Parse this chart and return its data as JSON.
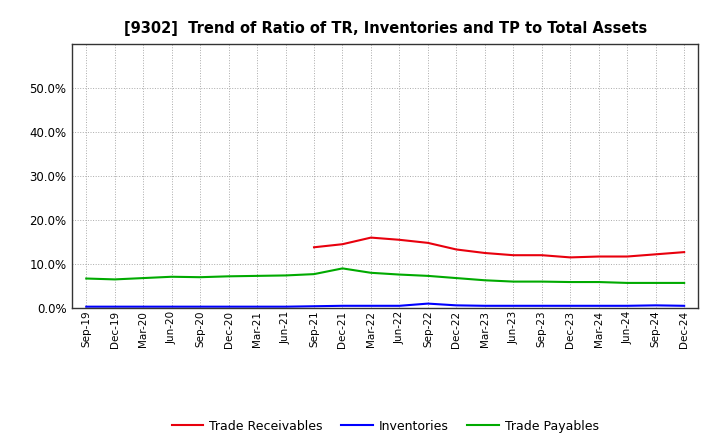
{
  "title": "[9302]  Trend of Ratio of TR, Inventories and TP to Total Assets",
  "x_labels": [
    "Sep-19",
    "Dec-19",
    "Mar-20",
    "Jun-20",
    "Sep-20",
    "Dec-20",
    "Mar-21",
    "Jun-21",
    "Sep-21",
    "Dec-21",
    "Mar-22",
    "Jun-22",
    "Sep-22",
    "Dec-22",
    "Mar-23",
    "Jun-23",
    "Sep-23",
    "Dec-23",
    "Mar-24",
    "Jun-24",
    "Sep-24",
    "Dec-24"
  ],
  "trade_receivables": [
    null,
    null,
    null,
    null,
    null,
    null,
    null,
    null,
    0.138,
    0.145,
    0.16,
    0.155,
    0.148,
    0.133,
    0.125,
    0.12,
    0.12,
    0.115,
    0.117,
    0.117,
    0.122,
    0.127
  ],
  "inventories": [
    0.003,
    0.003,
    0.003,
    0.003,
    0.003,
    0.003,
    0.003,
    0.003,
    0.004,
    0.005,
    0.005,
    0.005,
    0.01,
    0.006,
    0.005,
    0.005,
    0.005,
    0.005,
    0.005,
    0.005,
    0.006,
    0.005
  ],
  "trade_payables": [
    0.067,
    0.065,
    0.068,
    0.071,
    0.07,
    0.072,
    0.073,
    0.074,
    0.077,
    0.09,
    0.08,
    0.076,
    0.073,
    0.068,
    0.063,
    0.06,
    0.06,
    0.059,
    0.059,
    0.057,
    0.057,
    0.057
  ],
  "tr_color": "#e8000d",
  "inv_color": "#0000ff",
  "tp_color": "#00aa00",
  "ylim": [
    0,
    0.6
  ],
  "yticks": [
    0.0,
    0.1,
    0.2,
    0.3,
    0.4,
    0.5
  ],
  "background_color": "#ffffff",
  "grid_color": "#aaaaaa",
  "legend_labels": [
    "Trade Receivables",
    "Inventories",
    "Trade Payables"
  ]
}
